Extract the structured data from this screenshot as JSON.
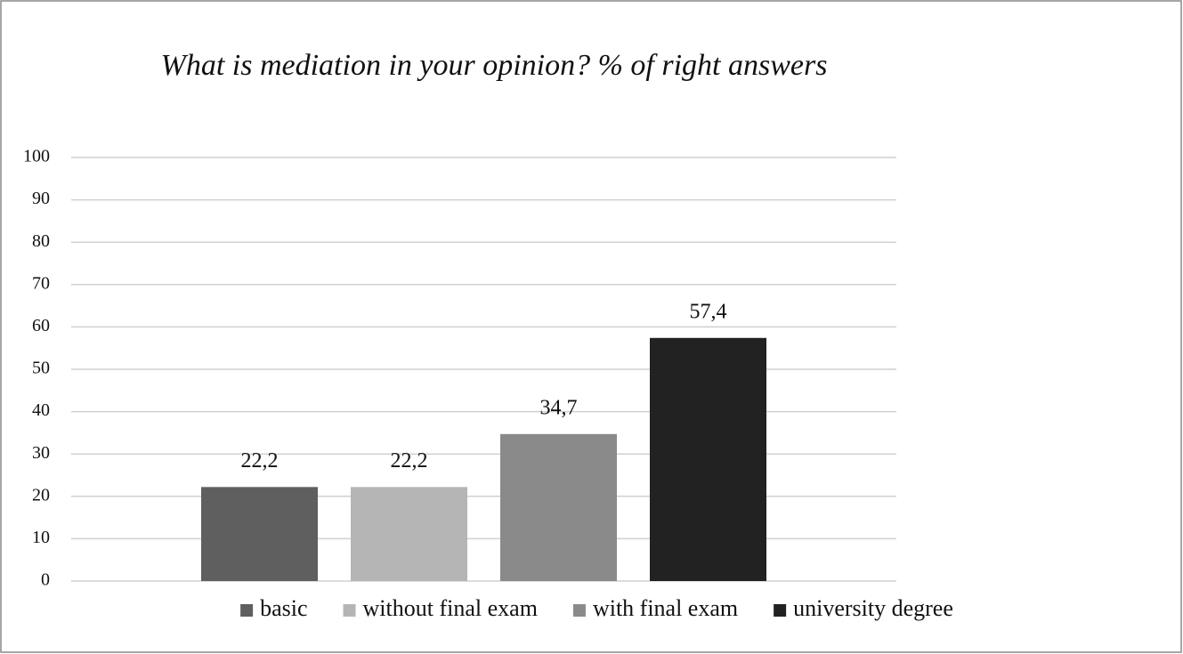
{
  "chart_data": {
    "type": "bar",
    "title": "What is mediation in your opinion? % of right answers",
    "categories": [
      null
    ],
    "series": [
      {
        "name": "basic",
        "color": "#5f5f5f",
        "values": [
          22.2
        ],
        "value_labels": [
          "22,2"
        ]
      },
      {
        "name": "without final exam",
        "color": "#b5b5b5",
        "values": [
          22.2
        ],
        "value_labels": [
          "22,2"
        ]
      },
      {
        "name": "with final exam",
        "color": "#8a8a8a",
        "values": [
          34.7
        ],
        "value_labels": [
          "34,7"
        ]
      },
      {
        "name": "university degree",
        "color": "#222222",
        "values": [
          57.4
        ],
        "value_labels": [
          "57,4"
        ]
      }
    ],
    "ylim": [
      0,
      100
    ],
    "yticks": [
      0,
      10,
      20,
      30,
      40,
      50,
      60,
      70,
      80,
      90,
      100
    ],
    "grid": true,
    "legend": "bottom"
  }
}
